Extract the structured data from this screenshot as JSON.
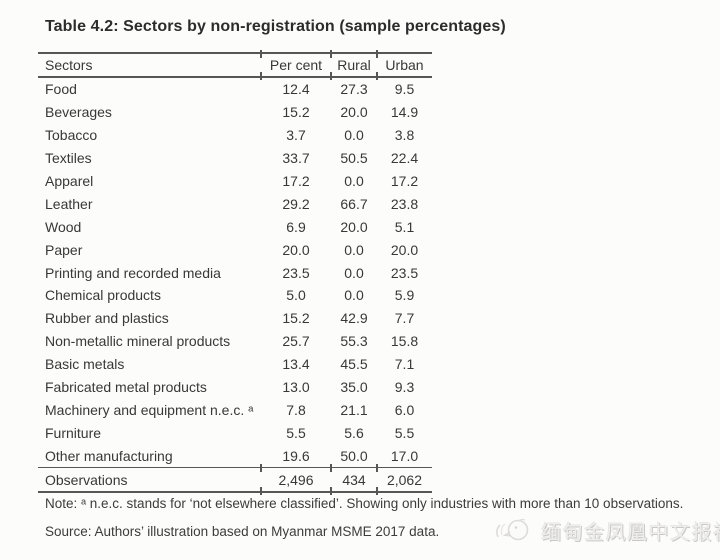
{
  "page": {
    "title": "Table 4.2: Sectors by non-registration (sample percentages)"
  },
  "table": {
    "columns": [
      "Sectors",
      "Per cent",
      "Rural",
      "Urban"
    ],
    "rows": [
      [
        "Food",
        "12.4",
        "27.3",
        "9.5"
      ],
      [
        "Beverages",
        "15.2",
        "20.0",
        "14.9"
      ],
      [
        "Tobacco",
        "3.7",
        "0.0",
        "3.8"
      ],
      [
        "Textiles",
        "33.7",
        "50.5",
        "22.4"
      ],
      [
        "Apparel",
        "17.2",
        "0.0",
        "17.2"
      ],
      [
        "Leather",
        "29.2",
        "66.7",
        "23.8"
      ],
      [
        "Wood",
        "6.9",
        "20.0",
        "5.1"
      ],
      [
        "Paper",
        "20.0",
        "0.0",
        "20.0"
      ],
      [
        "Printing and recorded media",
        "23.5",
        "0.0",
        "23.5"
      ],
      [
        "Chemical products",
        "5.0",
        "0.0",
        "5.9"
      ],
      [
        "Rubber and plastics",
        "15.2",
        "42.9",
        "7.7"
      ],
      [
        "Non-metallic mineral products",
        "25.7",
        "55.3",
        "15.8"
      ],
      [
        "Basic metals",
        "13.4",
        "45.5",
        "7.1"
      ],
      [
        "Fabricated metal products",
        "13.0",
        "35.0",
        "9.3"
      ],
      [
        "Machinery and equipment n.e.c. ᵃ",
        "7.8",
        "21.1",
        "6.0"
      ],
      [
        "Furniture",
        "5.5",
        "5.6",
        "5.5"
      ],
      [
        "Other manufacturing",
        "19.6",
        "50.0",
        "17.0"
      ]
    ],
    "footer": {
      "label": "Observations",
      "values": [
        "2,496",
        "434",
        "2,062"
      ]
    }
  },
  "note": "Note: ᵃ n.e.c. stands for ‘not elsewhere classified’. Showing only industries with more than 10 observations.",
  "source": "Source: Authors’ illustration based on Myanmar MSME 2017 data.",
  "watermark": {
    "icon": "phoenix-logo",
    "text": "缅甸金凤凰中文报社"
  }
}
